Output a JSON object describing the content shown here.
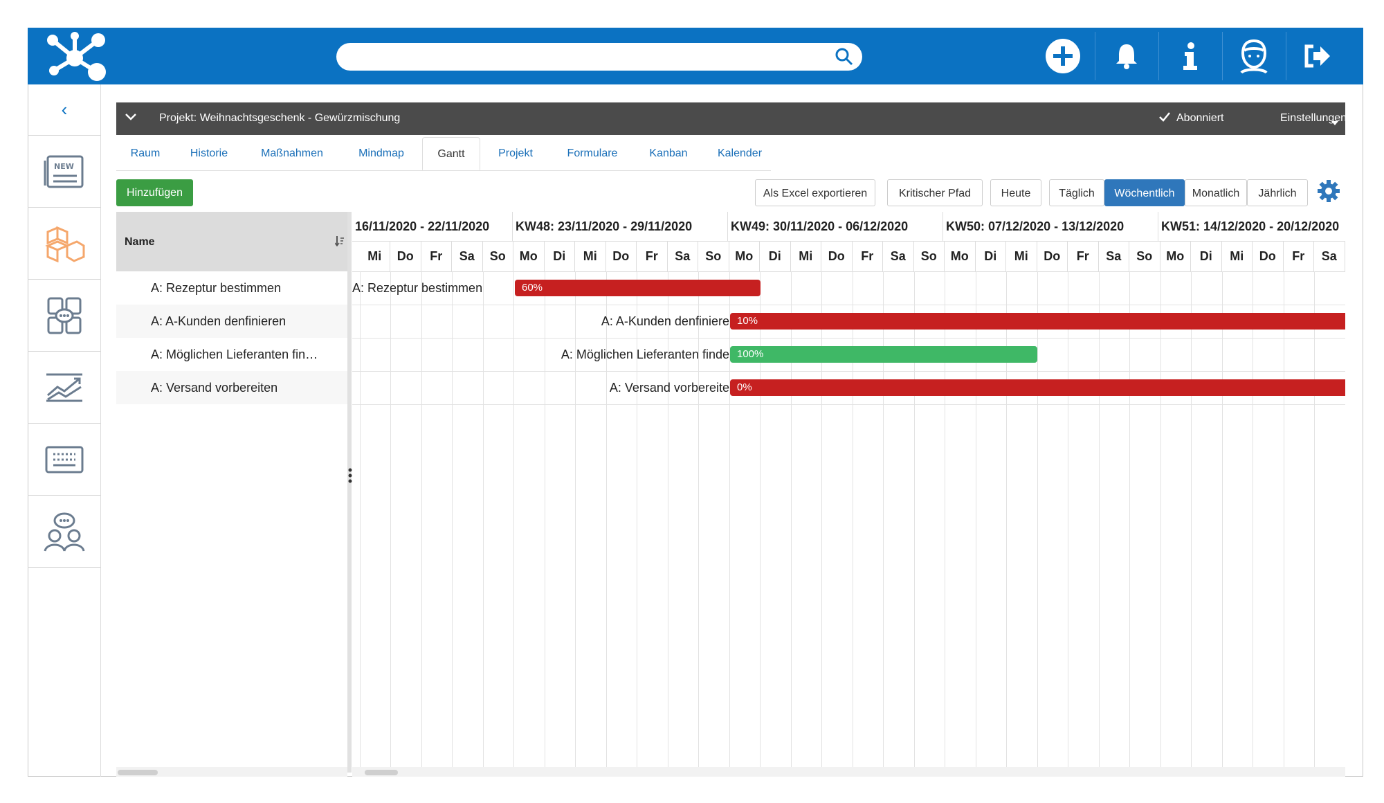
{
  "header": {
    "search_placeholder": "",
    "icons": [
      "add-icon",
      "bell-icon",
      "info-icon",
      "avatar-icon",
      "logout-icon"
    ]
  },
  "sidebar": {
    "collapse_label": "‹",
    "items": [
      "news-icon",
      "boxes-icon",
      "chat-board-icon",
      "chart-icon",
      "board-icon",
      "people-chat-icon"
    ]
  },
  "project": {
    "title": "Projekt: Weihnachtsgeschenk - Gewürzmischung",
    "subscribed": "Abonniert",
    "settings": "Einstellungen"
  },
  "tabs": [
    "Raum",
    "Historie",
    "Maßnahmen",
    "Mindmap",
    "Gantt",
    "Projekt",
    "Formulare",
    "Kanban",
    "Kalender"
  ],
  "active_tab": "Gantt",
  "toolbar": {
    "add": "Hinzufügen",
    "excel": "Als Excel exportieren",
    "critical": "Kritischer Pfad",
    "today": "Heute",
    "daily": "Täglich",
    "weekly": "Wöchentlich",
    "monthly": "Monatlich",
    "yearly": "Jährlich",
    "selected_view": "Wöchentlich"
  },
  "grid": {
    "name_header": "Name",
    "rows": [
      {
        "name": "A: Rezeptur bestimmen",
        "label": "A: Rezeptur bestimmen",
        "progress": "60%",
        "color": "#c62020"
      },
      {
        "name": "A: A-Kunden denfinieren",
        "label": "A: A-Kunden denfinieren",
        "progress": "10%",
        "color": "#c62020"
      },
      {
        "name": "A: Möglichen Lieferanten fin…",
        "label": "A: Möglichen Lieferanten finden",
        "progress": "100%",
        "color": "#3fb866"
      },
      {
        "name": "A: Versand vorbereiten",
        "label": "A: Versand vorbereiten",
        "progress": "0%",
        "color": "#c62020"
      }
    ]
  },
  "timeline": {
    "weeks": [
      "16/11/2020 - 22/11/2020",
      "KW48: 23/11/2020 - 29/11/2020",
      "KW49: 30/11/2020 - 06/12/2020",
      "KW50: 07/12/2020 - 13/12/2020",
      "KW51: 14/12/2020 - 20/12/2020"
    ],
    "days": [
      "Mi",
      "Do",
      "Fr",
      "Sa",
      "So",
      "Mo",
      "Di",
      "Mi",
      "Do",
      "Fr",
      "Sa",
      "So",
      "Mo",
      "Di",
      "Mi",
      "Do",
      "Fr",
      "Sa",
      "So",
      "Mo",
      "Di",
      "Mi",
      "Do",
      "Fr",
      "Sa",
      "So",
      "Mo",
      "Di",
      "Mi",
      "Do",
      "Fr",
      "Sa"
    ]
  },
  "colors": {
    "brand": "#0b72c2",
    "add_button": "#3b9d43",
    "selected_view": "#2f77bb",
    "late": "#c62020",
    "done": "#3fb866"
  }
}
